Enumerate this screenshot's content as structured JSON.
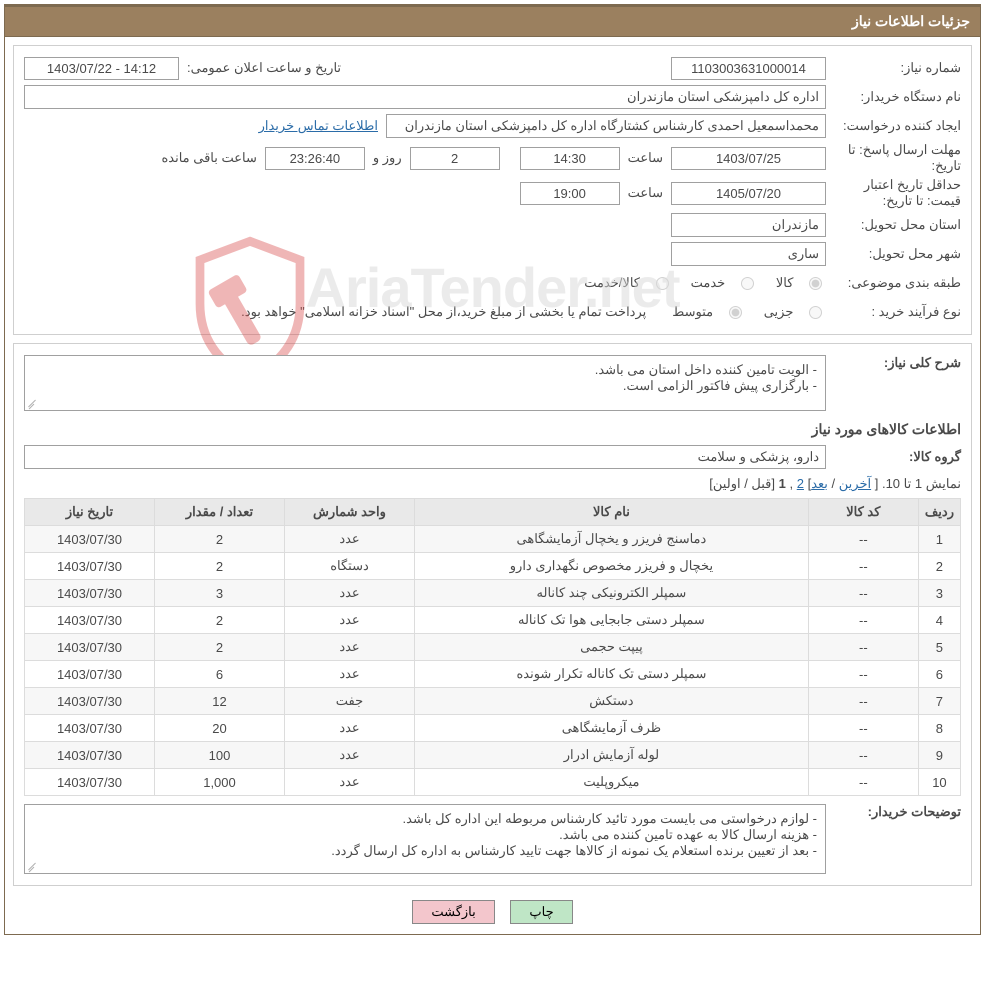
{
  "header": {
    "title": "جزئیات اطلاعات نیاز"
  },
  "info": {
    "need_no_label": "شماره نیاز:",
    "need_no": "1103003631000014",
    "announce_label": "تاریخ و ساعت اعلان عمومی:",
    "announce_val": "1403/07/22 - 14:12",
    "buyer_org_label": "نام دستگاه خریدار:",
    "buyer_org": "اداره کل دامپزشکی استان مازندران",
    "creator_label": "ایجاد کننده درخواست:",
    "creator": "محمداسمعیل احمدی کارشناس کشتارگاه اداره کل دامپزشکی استان مازندران",
    "contact_link": "اطلاعات تماس خریدار",
    "deadline_label": "مهلت ارسال پاسخ:",
    "until_label": "تا تاریخ:",
    "deadline_date": "1403/07/25",
    "hour_label": "ساعت",
    "deadline_time": "14:30",
    "days_val": "2",
    "days_and": "روز و",
    "countdown": "23:26:40",
    "remain_suffix": "ساعت باقی مانده",
    "price_valid_label": "حداقل تاریخ اعتبار قیمت:",
    "price_valid_date": "1405/07/20",
    "price_valid_time": "19:00",
    "prov_label": "استان محل تحویل:",
    "prov_val": "مازندران",
    "city_label": "شهر محل تحویل:",
    "city_val": "ساری",
    "cat_label": "طبقه بندی موضوعی:",
    "cat_opts": [
      "کالا",
      "خدمت",
      "کالا/خدمت"
    ],
    "cat_selected": 0,
    "proc_label": "نوع فرآیند خرید :",
    "proc_opts": [
      "جزیی",
      "متوسط"
    ],
    "proc_selected": 1,
    "proc_note": "پرداخت تمام یا بخشی از مبلغ خرید،از محل \"اسناد خزانه اسلامی\" خواهد بود."
  },
  "desc": {
    "label": "شرح کلی نیاز:",
    "text": "- الویت تامین کننده داخل استان می باشد.\n- بارگزاری پیش فاکتور الزامی است."
  },
  "items_section_title": "اطلاعات کالاهای مورد نیاز",
  "group": {
    "label": "گروه کالا:",
    "value": "دارو، پزشکی و سلامت"
  },
  "pager": {
    "prefix": "نمایش 1 تا 10. [",
    "last": "آخرین",
    "sep1": " / ",
    "next": "بعد",
    "sep2": "] ",
    "p2": "2",
    "comma": " ,",
    "p1": "1",
    "suffix": " [قبل / اولین]"
  },
  "table": {
    "headers": [
      "ردیف",
      "کد کالا",
      "نام کالا",
      "واحد شمارش",
      "تعداد / مقدار",
      "تاریخ نیاز"
    ],
    "rows": [
      [
        "1",
        "--",
        "دماسنج فریزر و یخچال آزمایشگاهی",
        "عدد",
        "2",
        "1403/07/30"
      ],
      [
        "2",
        "--",
        "یخچال و فریزر مخصوص نگهداری دارو",
        "دستگاه",
        "2",
        "1403/07/30"
      ],
      [
        "3",
        "--",
        "سمپلر الکترونیکی چند کاناله",
        "عدد",
        "3",
        "1403/07/30"
      ],
      [
        "4",
        "--",
        "سمپلر دستی جابجایی هوا تک کاناله",
        "عدد",
        "2",
        "1403/07/30"
      ],
      [
        "5",
        "--",
        "پیپت حجمی",
        "عدد",
        "2",
        "1403/07/30"
      ],
      [
        "6",
        "--",
        "سمپلر دستی تک کاناله تکرار شونده",
        "عدد",
        "6",
        "1403/07/30"
      ],
      [
        "7",
        "--",
        "دستکش",
        "جفت",
        "12",
        "1403/07/30"
      ],
      [
        "8",
        "--",
        "ظرف آزمایشگاهی",
        "عدد",
        "20",
        "1403/07/30"
      ],
      [
        "9",
        "--",
        "لوله آزمایش ادرار",
        "عدد",
        "100",
        "1403/07/30"
      ],
      [
        "10",
        "--",
        "میکروپلیت",
        "عدد",
        "1,000",
        "1403/07/30"
      ]
    ]
  },
  "buyer_desc": {
    "label": "توضیحات خریدار:",
    "text": "- لوازم درخواستی می بایست مورد تائید کارشناس مربوطه این اداره کل باشد.\n- هزینه ارسال کالا به عهده تامین کننده می باشد.\n- بعد از تعیین برنده استعلام یک نمونه از کالاها جهت تایید کارشناس به اداره کل ارسال گردد."
  },
  "buttons": {
    "print": "چاپ",
    "back": "بازگشت"
  },
  "colors": {
    "header_bg": "#9b805f",
    "border": "#cfcfcf",
    "link": "#2b6ca8"
  },
  "watermark": "AriaTender.net"
}
